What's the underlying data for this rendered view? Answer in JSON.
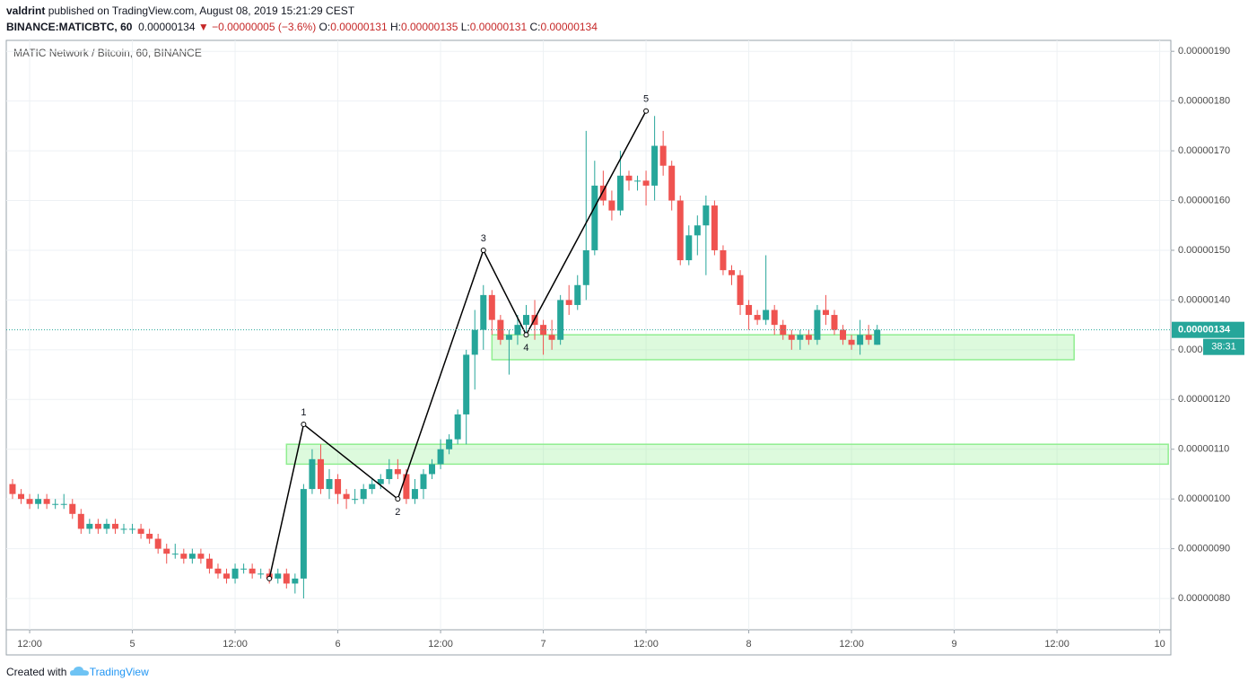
{
  "header": {
    "author": "valdrint",
    "published": "published on TradingView.com, August 08, 2019 15:21:29 CEST",
    "symbol": "BINANCE:MATICBTC, 60",
    "price": "0.00000134",
    "arrow": "▼",
    "change": "−0.00000005 (−3.6%)",
    "o_label": "O:",
    "o": "0.00000131",
    "h_label": "H:",
    "h": "0.00000135",
    "l_label": "L:",
    "l": "0.00000131",
    "c_label": "C:",
    "c": "0.00000134"
  },
  "footer": {
    "created": "Created with",
    "brand": "TradingView"
  },
  "chart_data": {
    "type": "candlestick",
    "title": "MATIC Network / Bitcoin, 60, BINANCE",
    "up_color": "#26a69a",
    "down_color": "#ef5350",
    "grid": true,
    "xlim": [
      9.27,
      145.3
    ],
    "ylim": [
      7.37e-07,
      1.922e-06
    ],
    "xticks": [
      {
        "value": 12,
        "label": "12:00"
      },
      {
        "value": 24,
        "label": "5"
      },
      {
        "value": 36,
        "label": "12:00"
      },
      {
        "value": 48,
        "label": "6"
      },
      {
        "value": 60,
        "label": "12:00"
      },
      {
        "value": 72,
        "label": "7"
      },
      {
        "value": 84,
        "label": "12:00"
      },
      {
        "value": 96,
        "label": "8"
      },
      {
        "value": 108,
        "label": "12:00"
      },
      {
        "value": 120,
        "label": "9"
      },
      {
        "value": 132,
        "label": "12:00"
      },
      {
        "value": 144,
        "label": "10"
      }
    ],
    "yticks": [
      {
        "value": 8e-07,
        "label": "0.00000080"
      },
      {
        "value": 9e-07,
        "label": "0.00000090"
      },
      {
        "value": 1e-06,
        "label": "0.00000100"
      },
      {
        "value": 1.1e-06,
        "label": "0.00000110"
      },
      {
        "value": 1.2e-06,
        "label": "0.00000120"
      },
      {
        "value": 1.3e-06,
        "label": "0.00000130"
      },
      {
        "value": 1.4e-06,
        "label": "0.00000140"
      },
      {
        "value": 1.5e-06,
        "label": "0.00000150"
      },
      {
        "value": 1.6e-06,
        "label": "0.00000160"
      },
      {
        "value": 1.7e-06,
        "label": "0.00000170"
      },
      {
        "value": 1.8e-06,
        "label": "0.00000180"
      },
      {
        "value": 1.9e-06,
        "label": "0.00000190"
      }
    ],
    "x": [
      10,
      11,
      12,
      13,
      14,
      15,
      16,
      17,
      18,
      19,
      20,
      21,
      22,
      23,
      24,
      25,
      26,
      27,
      28,
      29,
      30,
      31,
      32,
      33,
      34,
      35,
      36,
      37,
      38,
      39,
      40,
      41,
      42,
      43,
      44,
      45,
      46,
      47,
      48,
      49,
      50,
      51,
      52,
      53,
      54,
      55,
      56,
      57,
      58,
      59,
      60,
      61,
      62,
      63,
      64,
      65,
      66,
      67,
      68,
      69,
      70,
      71,
      72,
      73,
      74,
      75,
      76,
      77,
      78,
      79,
      80,
      81,
      82,
      83,
      84,
      85,
      86,
      87,
      88,
      89,
      90,
      91,
      92,
      93,
      94,
      95,
      96,
      97,
      98,
      99,
      100,
      101,
      102,
      103,
      104,
      105,
      106,
      107,
      108,
      109,
      110,
      111
    ],
    "open": [
      1.03e-06,
      1.01e-06,
      1e-06,
      9.9e-07,
      1e-06,
      9.9e-07,
      9.9e-07,
      9.9e-07,
      9.7e-07,
      9.4e-07,
      9.5e-07,
      9.4e-07,
      9.5e-07,
      9.4e-07,
      9.4e-07,
      9.4e-07,
      9.3e-07,
      9.2e-07,
      9e-07,
      8.9e-07,
      8.9e-07,
      8.8e-07,
      8.9e-07,
      8.8e-07,
      8.6e-07,
      8.5e-07,
      8.4e-07,
      8.6e-07,
      8.6e-07,
      8.5e-07,
      8.5e-07,
      8.4e-07,
      8.5e-07,
      8.3e-07,
      8.4e-07,
      1.02e-06,
      1.08e-06,
      1.02e-06,
      1.04e-06,
      1.01e-06,
      1e-06,
      1e-06,
      1.02e-06,
      1.03e-06,
      1.04e-06,
      1.06e-06,
      1.05e-06,
      1e-06,
      1.02e-06,
      1.05e-06,
      1.07e-06,
      1.1e-06,
      1.12e-06,
      1.17e-06,
      1.29e-06,
      1.34e-06,
      1.41e-06,
      1.36e-06,
      1.32e-06,
      1.33e-06,
      1.35e-06,
      1.37e-06,
      1.35e-06,
      1.33e-06,
      1.32e-06,
      1.4e-06,
      1.39e-06,
      1.43e-06,
      1.5e-06,
      1.63e-06,
      1.6e-06,
      1.58e-06,
      1.65e-06,
      1.64e-06,
      1.64e-06,
      1.63e-06,
      1.71e-06,
      1.67e-06,
      1.6e-06,
      1.48e-06,
      1.53e-06,
      1.55e-06,
      1.59e-06,
      1.5e-06,
      1.46e-06,
      1.45e-06,
      1.39e-06,
      1.37e-06,
      1.36e-06,
      1.38e-06,
      1.35e-06,
      1.33e-06,
      1.32e-06,
      1.33e-06,
      1.32e-06,
      1.38e-06,
      1.37e-06,
      1.34e-06,
      1.32e-06,
      1.31e-06,
      1.33e-06,
      1.31e-06
    ],
    "high": [
      1.04e-06,
      1.02e-06,
      1.01e-06,
      1.01e-06,
      1.01e-06,
      1e-06,
      1.01e-06,
      1e-06,
      9.8e-07,
      9.6e-07,
      9.6e-07,
      9.6e-07,
      9.6e-07,
      9.5e-07,
      9.5e-07,
      9.5e-07,
      9.4e-07,
      9.3e-07,
      9.1e-07,
      9.1e-07,
      9e-07,
      9e-07,
      9e-07,
      8.9e-07,
      8.7e-07,
      8.6e-07,
      8.7e-07,
      8.7e-07,
      8.7e-07,
      8.6e-07,
      8.6e-07,
      8.6e-07,
      8.6e-07,
      8.5e-07,
      1.03e-06,
      1.1e-06,
      1.11e-06,
      1.06e-06,
      1.05e-06,
      1.02e-06,
      1.02e-06,
      1.03e-06,
      1.04e-06,
      1.05e-06,
      1.08e-06,
      1.08e-06,
      1.06e-06,
      1.04e-06,
      1.06e-06,
      1.08e-06,
      1.12e-06,
      1.13e-06,
      1.18e-06,
      1.3e-06,
      1.38e-06,
      1.43e-06,
      1.42e-06,
      1.37e-06,
      1.34e-06,
      1.37e-06,
      1.39e-06,
      1.4e-06,
      1.36e-06,
      1.36e-06,
      1.41e-06,
      1.43e-06,
      1.45e-06,
      1.74e-06,
      1.68e-06,
      1.66e-06,
      1.62e-06,
      1.7e-06,
      1.66e-06,
      1.65e-06,
      1.66e-06,
      1.77e-06,
      1.74e-06,
      1.68e-06,
      1.61e-06,
      1.55e-06,
      1.57e-06,
      1.61e-06,
      1.6e-06,
      1.51e-06,
      1.47e-06,
      1.46e-06,
      1.4e-06,
      1.38e-06,
      1.49e-06,
      1.39e-06,
      1.36e-06,
      1.34e-06,
      1.34e-06,
      1.34e-06,
      1.39e-06,
      1.41e-06,
      1.38e-06,
      1.35e-06,
      1.33e-06,
      1.36e-06,
      1.35e-06,
      1.35e-06
    ],
    "low": [
      1e-06,
      9.9e-07,
      9.8e-07,
      9.8e-07,
      9.8e-07,
      9.8e-07,
      9.8e-07,
      9.6e-07,
      9.3e-07,
      9.3e-07,
      9.3e-07,
      9.3e-07,
      9.3e-07,
      9.3e-07,
      9.3e-07,
      9.2e-07,
      9.1e-07,
      8.9e-07,
      8.7e-07,
      8.8e-07,
      8.7e-07,
      8.7e-07,
      8.7e-07,
      8.5e-07,
      8.4e-07,
      8.3e-07,
      8.3e-07,
      8.5e-07,
      8.4e-07,
      8.4e-07,
      8.3e-07,
      8.3e-07,
      8.2e-07,
      8.1e-07,
      8e-07,
      1.01e-06,
      1.01e-06,
      1e-06,
      9.9e-07,
      9.8e-07,
      9.9e-07,
      9.9e-07,
      1.01e-06,
      1.02e-06,
      1.03e-06,
      1.04e-06,
      9.9e-07,
      9.9e-07,
      1e-06,
      1.04e-06,
      1.06e-06,
      1.09e-06,
      1.11e-06,
      1.11e-06,
      1.22e-06,
      1.3e-06,
      1.33e-06,
      1.31e-06,
      1.25e-06,
      1.31e-06,
      1.33e-06,
      1.32e-06,
      1.29e-06,
      1.3e-06,
      1.31e-06,
      1.37e-06,
      1.38e-06,
      1.4e-06,
      1.49e-06,
      1.59e-06,
      1.56e-06,
      1.57e-06,
      1.62e-06,
      1.62e-06,
      1.59e-06,
      1.6e-06,
      1.65e-06,
      1.58e-06,
      1.47e-06,
      1.47e-06,
      1.49e-06,
      1.45e-06,
      1.49e-06,
      1.45e-06,
      1.43e-06,
      1.37e-06,
      1.34e-06,
      1.35e-06,
      1.35e-06,
      1.33e-06,
      1.32e-06,
      1.3e-06,
      1.3e-06,
      1.31e-06,
      1.31e-06,
      1.35e-06,
      1.33e-06,
      1.31e-06,
      1.3e-06,
      1.29e-06,
      1.31e-06,
      1.31e-06
    ],
    "close": [
      1.01e-06,
      1e-06,
      9.9e-07,
      1e-06,
      9.9e-07,
      9.9e-07,
      9.9e-07,
      9.7e-07,
      9.4e-07,
      9.5e-07,
      9.4e-07,
      9.5e-07,
      9.4e-07,
      9.4e-07,
      9.4e-07,
      9.3e-07,
      9.2e-07,
      9e-07,
      8.9e-07,
      8.9e-07,
      8.8e-07,
      8.9e-07,
      8.8e-07,
      8.6e-07,
      8.5e-07,
      8.4e-07,
      8.6e-07,
      8.6e-07,
      8.5e-07,
      8.5e-07,
      8.4e-07,
      8.5e-07,
      8.3e-07,
      8.4e-07,
      1.02e-06,
      1.08e-06,
      1.02e-06,
      1.04e-06,
      1.01e-06,
      1e-06,
      1e-06,
      1.02e-06,
      1.03e-06,
      1.04e-06,
      1.06e-06,
      1.05e-06,
      1e-06,
      1.02e-06,
      1.05e-06,
      1.07e-06,
      1.1e-06,
      1.12e-06,
      1.17e-06,
      1.29e-06,
      1.34e-06,
      1.41e-06,
      1.36e-06,
      1.32e-06,
      1.33e-06,
      1.35e-06,
      1.37e-06,
      1.35e-06,
      1.33e-06,
      1.32e-06,
      1.4e-06,
      1.39e-06,
      1.43e-06,
      1.5e-06,
      1.63e-06,
      1.6e-06,
      1.58e-06,
      1.65e-06,
      1.64e-06,
      1.64e-06,
      1.63e-06,
      1.71e-06,
      1.67e-06,
      1.6e-06,
      1.48e-06,
      1.53e-06,
      1.55e-06,
      1.59e-06,
      1.5e-06,
      1.46e-06,
      1.45e-06,
      1.39e-06,
      1.37e-06,
      1.36e-06,
      1.38e-06,
      1.35e-06,
      1.33e-06,
      1.32e-06,
      1.33e-06,
      1.32e-06,
      1.38e-06,
      1.37e-06,
      1.34e-06,
      1.32e-06,
      1.31e-06,
      1.33e-06,
      1.32e-06,
      1.34e-06
    ],
    "zones": [
      {
        "x": [
          42,
          145
        ],
        "y": [
          1.07e-06,
          1.11e-06
        ]
      },
      {
        "x": [
          66,
          134
        ],
        "y": [
          1.28e-06,
          1.33e-06
        ]
      }
    ],
    "zone_color": "#90ee90",
    "wave": {
      "labels": [
        null,
        "1",
        "2",
        "3",
        "4",
        "5"
      ],
      "x": [
        40,
        44,
        55,
        65,
        70,
        84
      ],
      "y": [
        8.4e-07,
        1.15e-06,
        1e-06,
        1.5e-06,
        1.33e-06,
        1.78e-06
      ]
    },
    "last_price": {
      "value": 1.34e-06,
      "label": "0.00000134"
    },
    "countdown": "38:31"
  }
}
